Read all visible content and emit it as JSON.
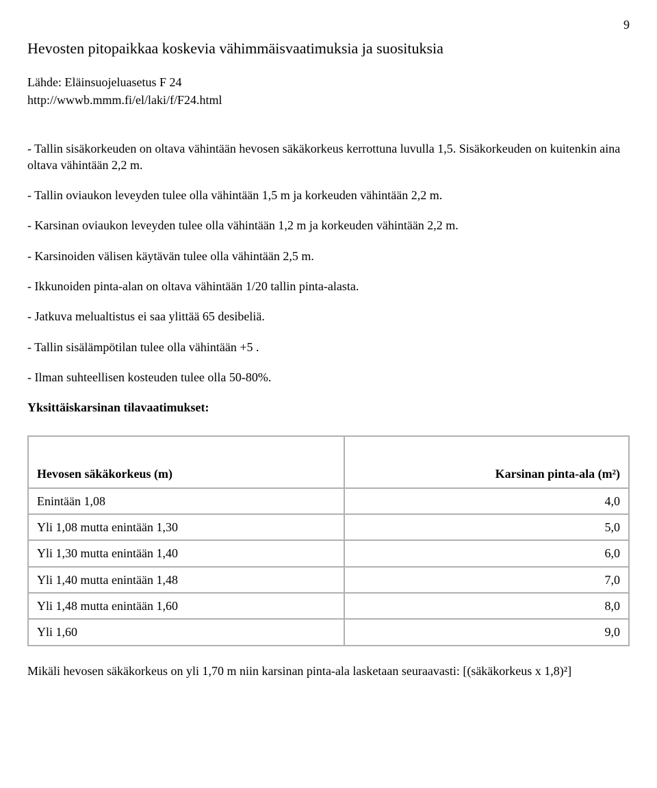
{
  "page_number": "9",
  "title": "Hevosten pitopaikkaa koskevia vähimmäisvaatimuksia ja suosituksia",
  "source_label": "Lähde: Eläinsuojeluasetus F 24",
  "source_url": "http://wwwb.mmm.fi/el/laki/f/F24.html",
  "paragraphs": [
    "- Tallin sisäkorkeuden on oltava vähintään hevosen säkäkorkeus kerrottuna luvulla 1,5. Sisäkorkeuden on kuitenkin aina oltava vähintään 2,2 m.",
    "- Tallin oviaukon leveyden tulee olla vähintään 1,5 m ja korkeuden vähintään 2,2 m.",
    "- Karsinan oviaukon leveyden tulee olla vähintään 1,2 m ja korkeuden vähintään 2,2 m.",
    "- Karsinoiden välisen käytävän tulee olla vähintään 2,5 m.",
    "- Ikkunoiden pinta-alan on oltava vähintään 1/20 tallin pinta-alasta.",
    "- Jatkuva melualtistus ei saa ylittää 65 desibeliä.",
    "- Tallin sisälämpötilan tulee olla vähintään +5 .",
    "- Ilman suhteellisen kosteuden tulee olla 50-80%."
  ],
  "subheading": "Yksittäiskarsinan tilavaatimukset:",
  "table": {
    "columns": [
      "Hevosen säkäkorkeus (m)",
      "Karsinan pinta-ala (m²)"
    ],
    "rows": [
      [
        "Enintään 1,08",
        "4,0"
      ],
      [
        "Yli 1,08 mutta enintään 1,30",
        "5,0"
      ],
      [
        "Yli 1,30 mutta enintään 1,40",
        "6,0"
      ],
      [
        "Yli 1,40 mutta enintään 1,48",
        "7,0"
      ],
      [
        "Yli 1,48 mutta enintään 1,60",
        "8,0"
      ],
      [
        "Yli 1,60",
        "9,0"
      ]
    ]
  },
  "footnote": "Mikäli hevosen säkäkorkeus on yli 1,70 m niin karsinan pinta-ala lasketaan seuraavasti: [(säkäkorkeus x 1,8)²]"
}
